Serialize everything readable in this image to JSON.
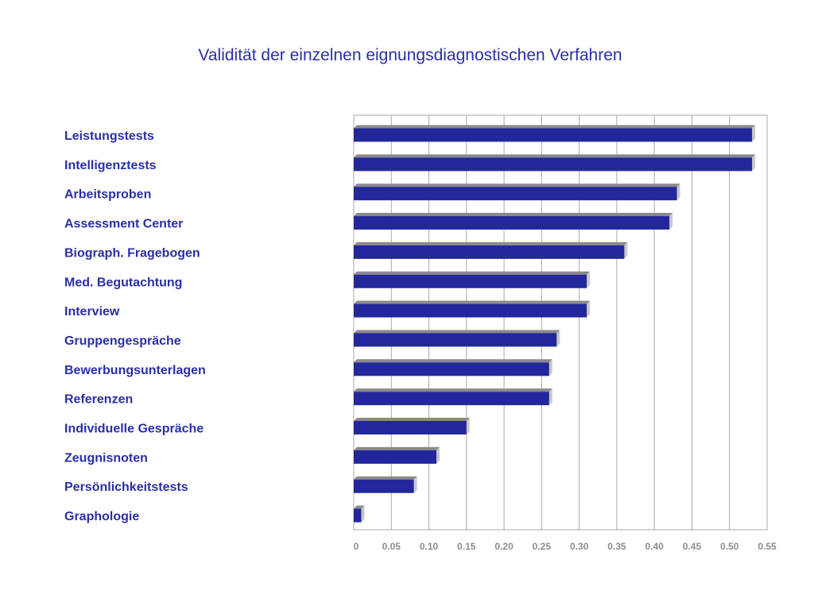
{
  "chart_data": {
    "type": "bar",
    "orientation": "horizontal",
    "title": "Validität der einzelnen eignungsdiagnostischen Verfahren",
    "xlabel": "",
    "ylabel": "",
    "categories": [
      "Leistungstests",
      "Intelligenztests",
      "Arbeitsproben",
      "Assessment Center",
      "Biograph. Fragebogen",
      "Med. Begutachtung",
      "Interview",
      "Gruppengespräche",
      "Bewerbungsunterlagen",
      "Referenzen",
      "Individuelle Gespräche",
      "Zeugnisnoten",
      "Persönlichkeitstests",
      "Graphologie"
    ],
    "values": [
      0.53,
      0.53,
      0.43,
      0.42,
      0.36,
      0.31,
      0.31,
      0.27,
      0.26,
      0.26,
      0.15,
      0.11,
      0.08,
      0.01
    ],
    "xlim": [
      0,
      0.55
    ],
    "x_ticks": [
      "0",
      "0.05",
      "0.10",
      "0.15",
      "0.20",
      "0.25",
      "0.30",
      "0.35",
      "0.40",
      "0.45",
      "0.50",
      "0.55"
    ],
    "grid": true,
    "legend": "none",
    "colors": {
      "bar": "#24279b",
      "bar_top": "#8a8a8a",
      "bar_side": "#c9c9c9",
      "title": "#2a2fa7",
      "labels": "#2a2fa7",
      "ticks": "#8c8c8c",
      "grid": "#a8a8a8"
    }
  }
}
